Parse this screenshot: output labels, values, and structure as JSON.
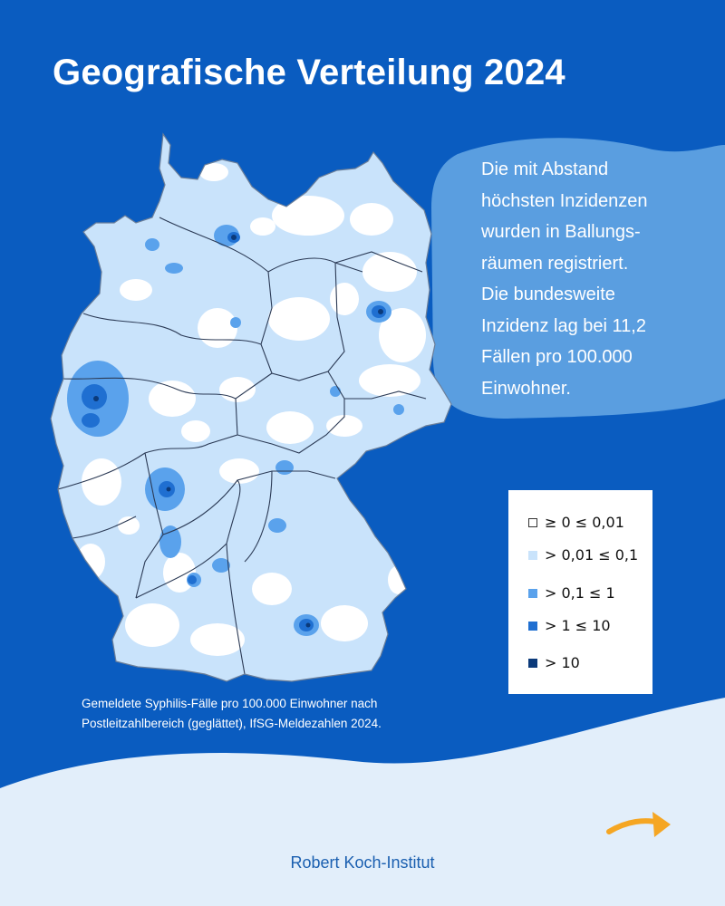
{
  "title": "Geografische Verteilung 2024",
  "info_lines": [
    "Die mit Abstand",
    "höchsten Inzidenzen",
    "wurden in Ballungs-",
    "räumen registriert.",
    "Die bundesweite",
    "Inzidenz lag bei 11,2",
    "Fällen pro 100.000",
    "Einwohner."
  ],
  "legend": [
    {
      "label": "≥ 0 ≤ 0,01",
      "color": "#ffffff"
    },
    {
      "label": "> 0,01 ≤ 0,1",
      "color": "#c9e3fb"
    },
    {
      "label": "> 0,1 ≤ 1",
      "color": "#5aa2ec"
    },
    {
      "label": "> 1 ≤ 10",
      "color": "#1f6fd1"
    },
    {
      "label": "> 10",
      "color": "#0b3a7a"
    }
  ],
  "caption_lines": [
    "Gemeldete Syphilis-Fälle pro 100.000  Einwohner nach",
    "Postleitzahlbereich (geglättet), IfSG-Meldezahlen 2024."
  ],
  "footer": "Robert Koch-Institut",
  "colors": {
    "background": "#0a5cc0",
    "bubble": "#5a9ee0",
    "footer_wave": "#e2eefa",
    "arrow": "#f5a623"
  }
}
